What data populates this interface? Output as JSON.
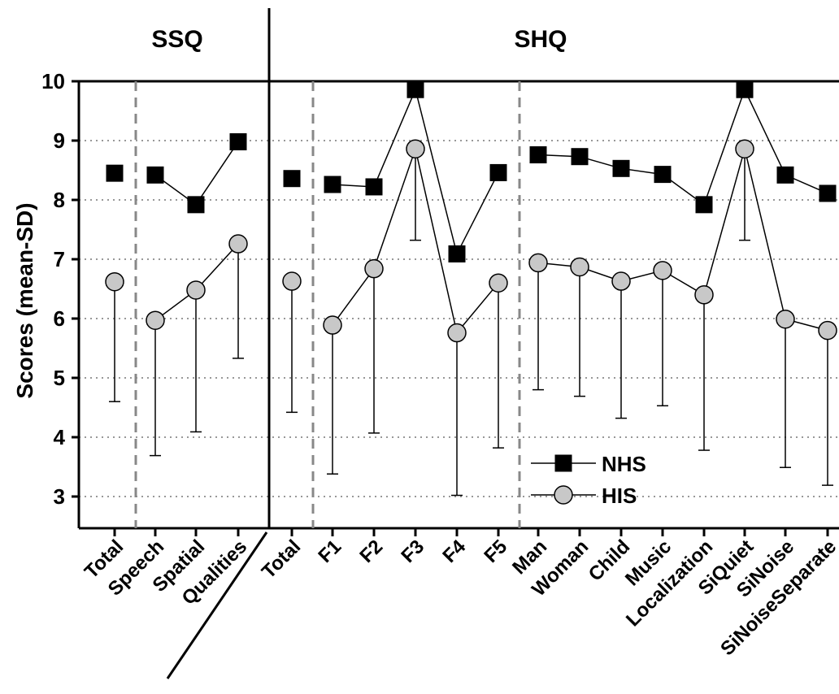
{
  "chart_data": {
    "type": "line",
    "ylabel": "Scores (mean-SD)",
    "ylim": [
      2.5,
      10
    ],
    "yticks": [
      3,
      4,
      5,
      6,
      7,
      8,
      9,
      10
    ],
    "grid": "horizontal dotted",
    "groups": [
      {
        "label": "SSQ"
      },
      {
        "label": "SHQ"
      }
    ],
    "categories": [
      "Total",
      "Speech",
      "Spatial",
      "Qualities",
      "Total",
      "F1",
      "F2",
      "F3",
      "F4",
      "F5",
      "Man",
      "Woman",
      "Child",
      "Music",
      "Localization",
      "SiQuiet",
      "SiNoise",
      "SiNoiseSeparate"
    ],
    "segments": [
      [
        0
      ],
      [
        1,
        2,
        3
      ],
      [
        4
      ],
      [
        5,
        6,
        7,
        8,
        9
      ],
      [
        10,
        11,
        12,
        13,
        14,
        15,
        16,
        17
      ]
    ],
    "legend_position": "lower-right",
    "series": [
      {
        "name": "NHS",
        "marker": "square",
        "fill": "#000000",
        "values": [
          8.45,
          8.42,
          7.92,
          8.98,
          8.36,
          8.26,
          8.22,
          9.86,
          7.09,
          8.46,
          8.76,
          8.73,
          8.53,
          8.43,
          7.92,
          9.86,
          8.42,
          8.11
        ]
      },
      {
        "name": "HIS",
        "marker": "circle",
        "fill": "#c8c8c8",
        "values": [
          6.62,
          5.97,
          6.48,
          7.26,
          6.63,
          5.89,
          6.84,
          8.86,
          5.76,
          6.6,
          6.94,
          6.87,
          6.63,
          6.81,
          6.4,
          8.86,
          5.99,
          5.8
        ],
        "lower": [
          4.6,
          3.69,
          4.09,
          5.33,
          4.42,
          3.38,
          4.07,
          7.32,
          3.02,
          3.82,
          4.8,
          4.69,
          4.32,
          4.53,
          3.78,
          7.32,
          3.49,
          3.19
        ]
      }
    ]
  }
}
